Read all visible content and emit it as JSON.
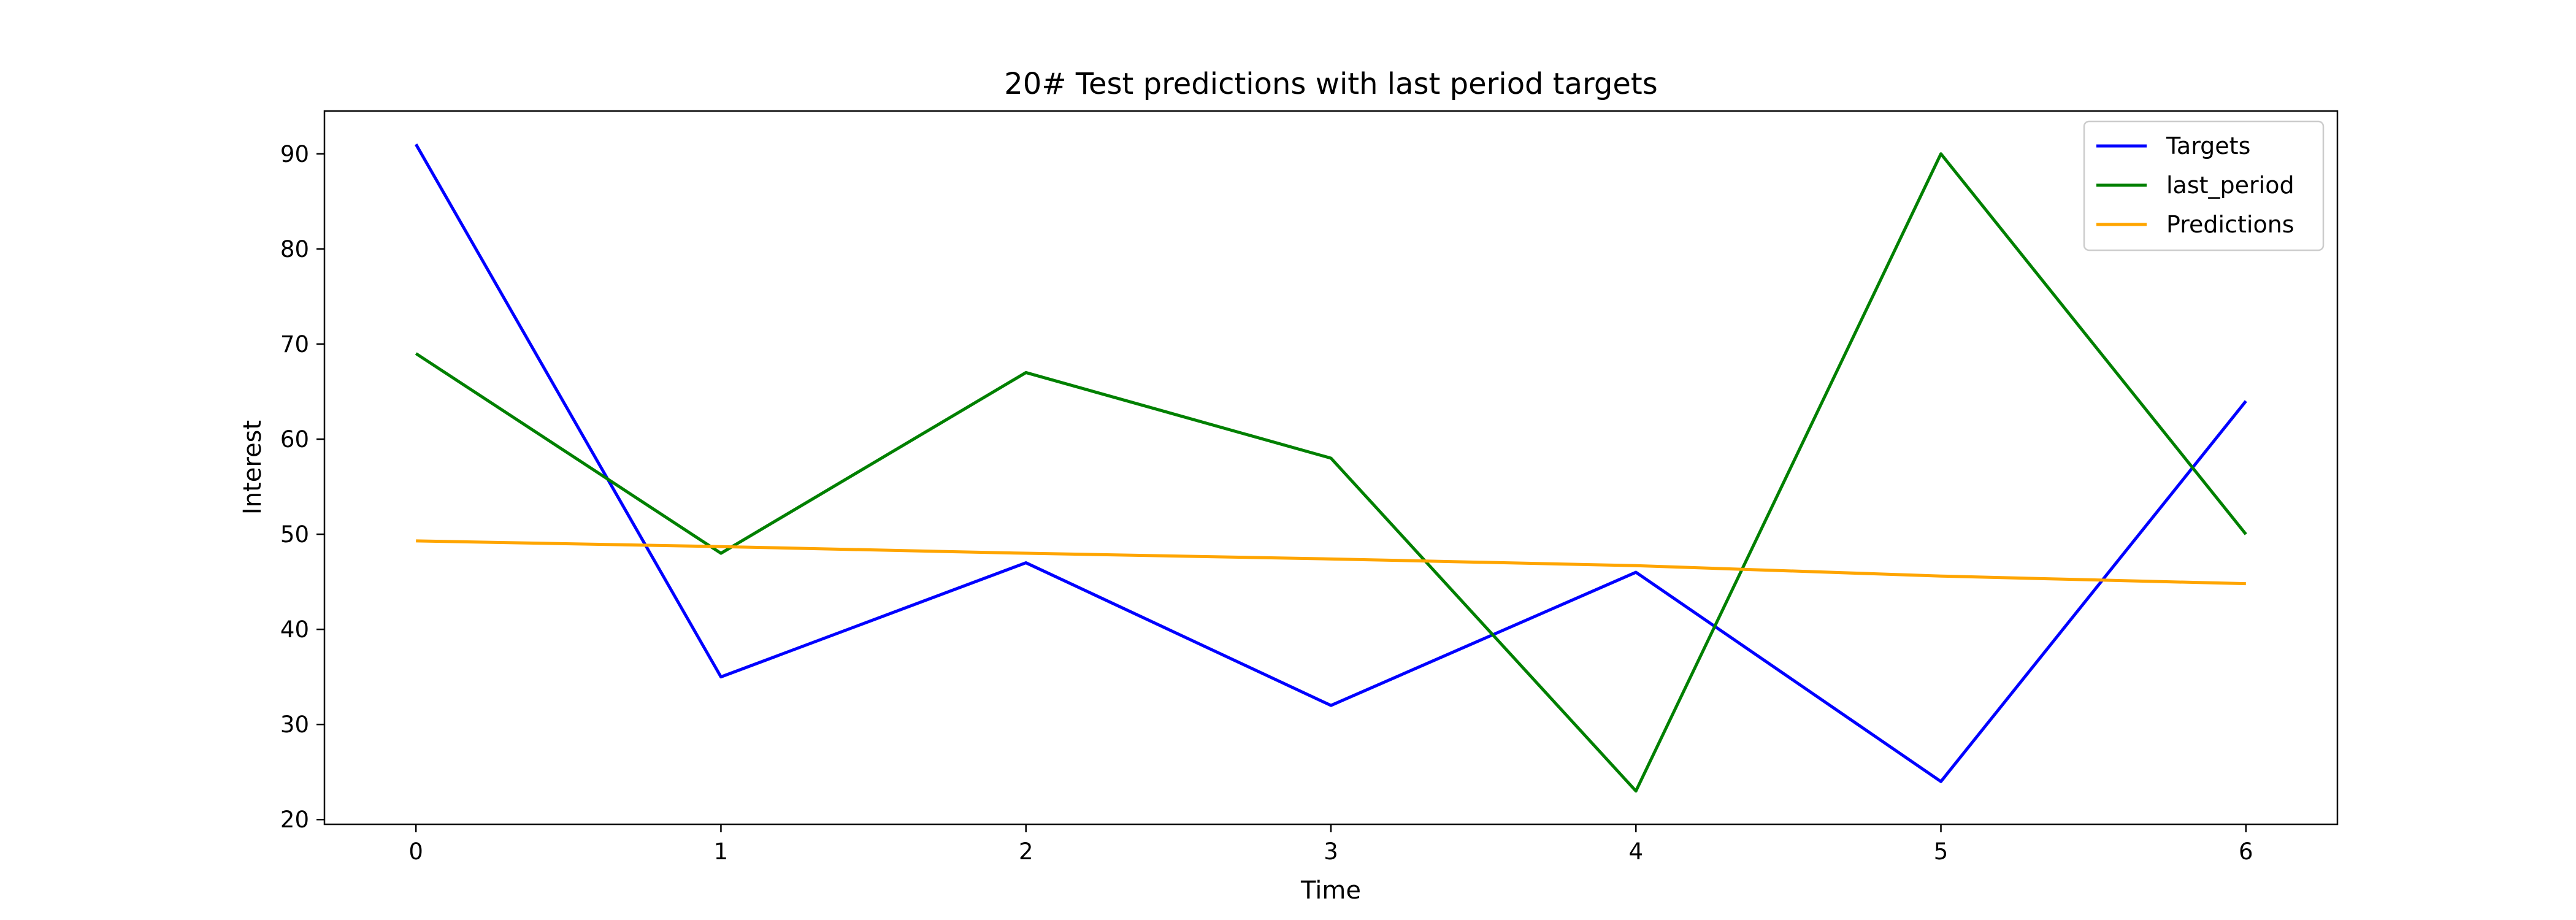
{
  "chart_data": {
    "type": "line",
    "title": "20# Test predictions with last period targets",
    "xlabel": "Time",
    "ylabel": "Interest",
    "x": [
      0,
      1,
      2,
      3,
      4,
      5,
      6
    ],
    "xlim": [
      -0.3,
      6.3
    ],
    "ylim": [
      19.5,
      94.5
    ],
    "xticks": [
      0,
      1,
      2,
      3,
      4,
      5,
      6
    ],
    "yticks": [
      20,
      30,
      40,
      50,
      60,
      70,
      80,
      90
    ],
    "grid": false,
    "legend_position": "top-right",
    "series": [
      {
        "name": "Targets",
        "color": "#0000ff",
        "values": [
          91,
          35,
          47,
          32,
          46,
          24,
          64
        ]
      },
      {
        "name": "last_period",
        "color": "#008000",
        "values": [
          69,
          48,
          67,
          58,
          23,
          90,
          50
        ]
      },
      {
        "name": "Predictions",
        "color": "#ffa500",
        "values": [
          49.3,
          48.7,
          48.0,
          47.4,
          46.7,
          45.6,
          44.8
        ]
      }
    ]
  }
}
